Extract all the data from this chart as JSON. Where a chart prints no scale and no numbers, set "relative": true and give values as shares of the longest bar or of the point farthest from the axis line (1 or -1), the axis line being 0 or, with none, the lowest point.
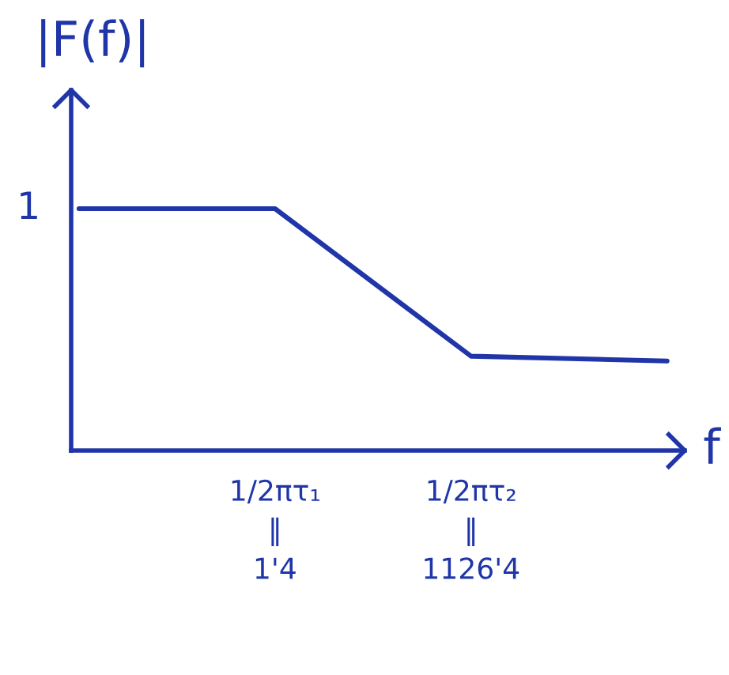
{
  "chart_data": {
    "type": "line",
    "ylabel": "|F(f)|",
    "xlabel": "f",
    "categories": [
      null,
      "1/2πτ₁\n‖\n1'4",
      "1/2πτ₂\n‖\n1126'4",
      null
    ],
    "series": [
      {
        "color": "#1f35a8",
        "values": [
          1,
          1,
          0.39,
          0.37
        ]
      }
    ],
    "relative": true,
    "annotations": [
      "1"
    ],
    "grid": false,
    "marker": "none",
    "line_style": "solid"
  }
}
